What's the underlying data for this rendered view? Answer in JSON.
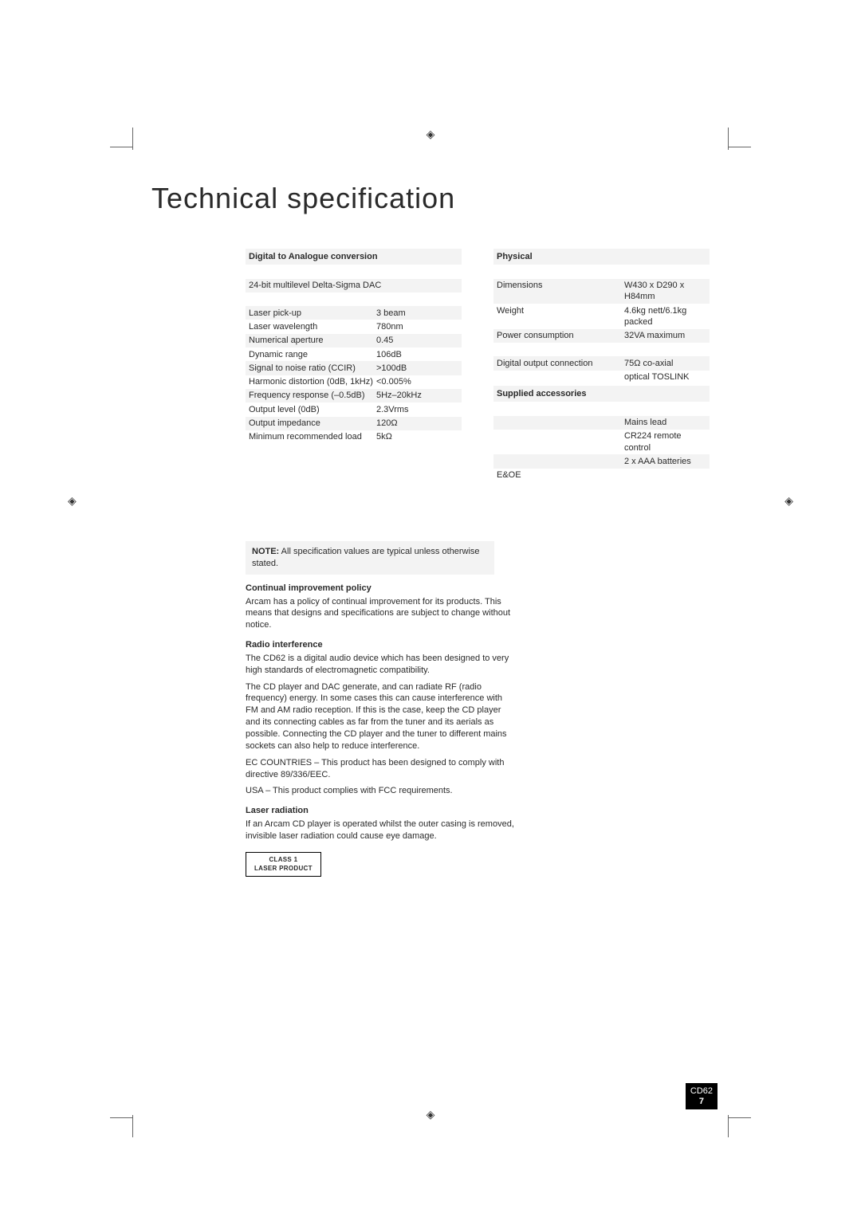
{
  "title": "Technical specification",
  "left": {
    "section1_head": "Digital to Analogue conversion",
    "dac_line": "24-bit multilevel Delta-Sigma DAC",
    "rows": [
      {
        "label": "Laser pick-up",
        "value": "3 beam"
      },
      {
        "label": "Laser wavelength",
        "value": "780nm"
      },
      {
        "label": "Numerical aperture",
        "value": "0.45"
      },
      {
        "label": "Dynamic range",
        "value": "106dB"
      },
      {
        "label": "Signal to noise ratio (CCIR)",
        "value": ">100dB"
      },
      {
        "label": "Harmonic distortion (0dB, 1kHz)",
        "value": "<0.005%"
      },
      {
        "label": "Frequency response (–0.5dB)",
        "value": "5Hz–20kHz"
      },
      {
        "label": "Output level (0dB)",
        "value": "2.3Vrms"
      },
      {
        "label": "Output impedance",
        "value": "120Ω"
      },
      {
        "label": "Minimum recommended load",
        "value": "5kΩ"
      }
    ]
  },
  "right": {
    "physical_head": "Physical",
    "physical_rows": [
      {
        "label": "Dimensions",
        "value": "W430 x D290 x H84mm"
      },
      {
        "label": "Weight",
        "value": "4.6kg nett/6.1kg packed"
      },
      {
        "label": "Power consumption",
        "value": "32VA maximum"
      }
    ],
    "digital_row": {
      "label": "Digital output connection",
      "value": "75Ω co-axial"
    },
    "digital_extra": "optical TOSLINK",
    "accessories_head": "Supplied accessories",
    "accessories": [
      "Mains lead",
      "CR224 remote control",
      "2 x AAA batteries"
    ],
    "eoe": "E&OE"
  },
  "note_label": "NOTE:",
  "note_text": " All specification values are typical unless otherwise stated.",
  "improvement_head": "Continual improvement policy",
  "improvement_text": "Arcam has a policy of continual improvement for its products. This means that designs and specifications are subject to change without notice.",
  "radio_head": "Radio interference",
  "radio_p1": "The CD62 is a digital audio device which has been designed to very high standards of electromagnetic compatibility.",
  "radio_p2": "The CD player and DAC generate, and can radiate RF (radio frequency) energy. In some cases this can cause interference with FM and AM radio reception. If this is the case, keep the CD player and its connecting cables as far from the tuner and its aerials as possible. Connecting the CD player and the tuner to different mains sockets can also help to reduce interference.",
  "radio_p3": "EC COUNTRIES – This product has been designed to comply with directive 89/336/EEC.",
  "radio_p4": "USA – This product complies with FCC requirements.",
  "laser_head": "Laser radiation",
  "laser_text": "If an Arcam CD player is operated whilst the outer casing is removed, invisible laser radiation could cause eye damage.",
  "laser_box_l1": "CLASS 1",
  "laser_box_l2": "LASER PRODUCT",
  "model": "CD62",
  "page_num": "7",
  "shade_color": "#f3f3f3"
}
